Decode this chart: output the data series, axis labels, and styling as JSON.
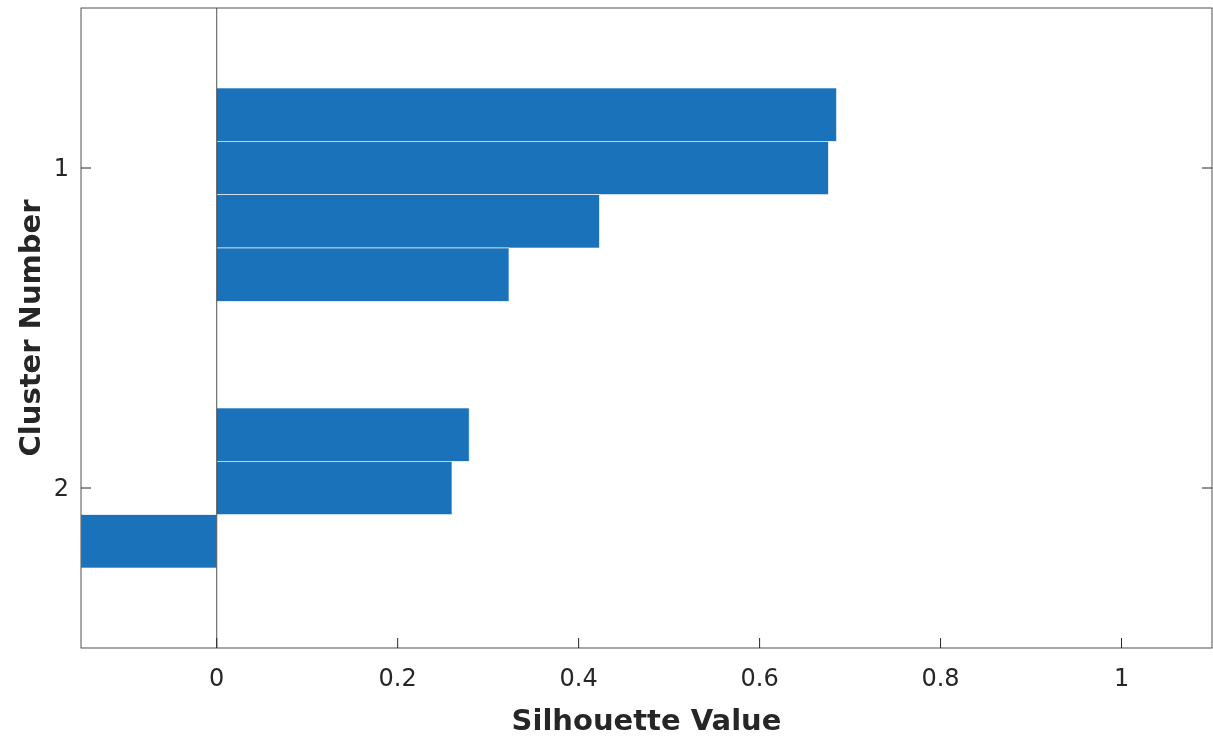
{
  "chart_data": {
    "type": "bar",
    "orientation": "horizontal",
    "xlabel": "Silhouette Value",
    "ylabel": "Cluster Number",
    "categories": [
      null,
      "1",
      null,
      null,
      null,
      null,
      null,
      "2",
      null
    ],
    "values": [
      0.685,
      0.676,
      0.423,
      0.323,
      null,
      null,
      0.279,
      0.26,
      -0.15
    ],
    "color": "#1a72bb",
    "xlim": [
      -0.15,
      1.1
    ],
    "xticks": [
      0,
      0.2,
      0.4,
      0.6,
      0.8,
      1
    ],
    "ref_lines": [
      {
        "axis": "x",
        "value": 0,
        "color": "#262626"
      }
    ]
  }
}
